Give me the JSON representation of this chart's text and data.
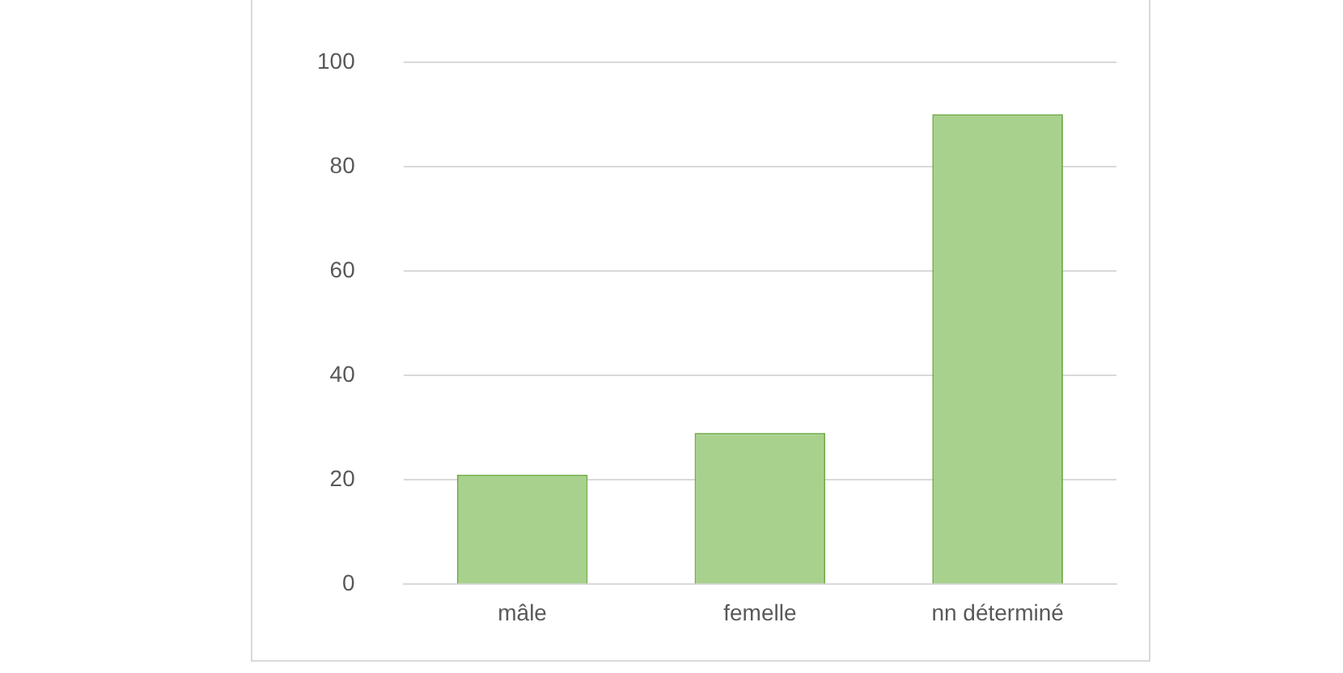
{
  "chart_data": {
    "type": "bar",
    "categories": [
      "mâle",
      "femelle",
      "nn déterminé"
    ],
    "values": [
      21,
      29,
      90
    ],
    "color": "#a9d18e",
    "ylim": [
      0,
      100
    ],
    "yticks": [
      0,
      20,
      40,
      60,
      80,
      100
    ],
    "grid": "y",
    "legend": false
  }
}
